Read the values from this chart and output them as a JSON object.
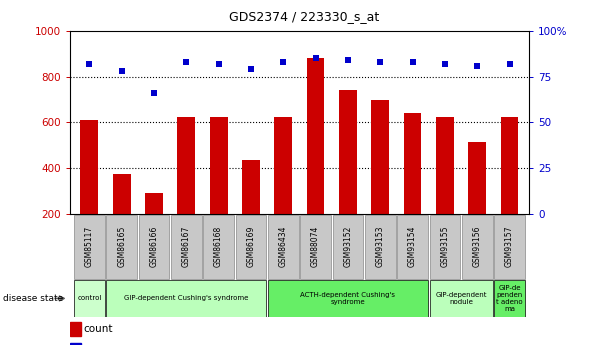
{
  "title": "GDS2374 / 223330_s_at",
  "samples": [
    "GSM85117",
    "GSM86165",
    "GSM86166",
    "GSM86167",
    "GSM86168",
    "GSM86169",
    "GSM86434",
    "GSM88074",
    "GSM93152",
    "GSM93153",
    "GSM93154",
    "GSM93155",
    "GSM93156",
    "GSM93157"
  ],
  "counts": [
    610,
    375,
    290,
    625,
    625,
    435,
    625,
    880,
    740,
    700,
    640,
    625,
    515,
    625
  ],
  "percentile": [
    82,
    78,
    66,
    83,
    82,
    79,
    83,
    85,
    84,
    83,
    83,
    82,
    81,
    82
  ],
  "disease_groups": [
    {
      "label": "control",
      "start": 0,
      "end": 1,
      "color": "#ccffcc"
    },
    {
      "label": "GIP-dependent Cushing's syndrome",
      "start": 1,
      "end": 6,
      "color": "#bbffbb"
    },
    {
      "label": "ACTH-dependent Cushing's\nsyndrome",
      "start": 6,
      "end": 11,
      "color": "#66ee66"
    },
    {
      "label": "GIP-dependent\nnodule",
      "start": 11,
      "end": 13,
      "color": "#bbffbb"
    },
    {
      "label": "GIP-de\npenden\nt adeno\nma",
      "start": 13,
      "end": 14,
      "color": "#66ee66"
    }
  ],
  "bar_color": "#cc0000",
  "dot_color": "#0000cc",
  "ylim_left": [
    200,
    1000
  ],
  "ylim_right": [
    0,
    100
  ],
  "yticks_left": [
    200,
    400,
    600,
    800,
    1000
  ],
  "yticks_right": [
    0,
    25,
    50,
    75,
    100
  ],
  "background_color": "#ffffff",
  "plot_bg": "#ffffff",
  "grid_color": "#000000",
  "sample_box_color": "#c8c8c8",
  "bar_width": 0.55
}
